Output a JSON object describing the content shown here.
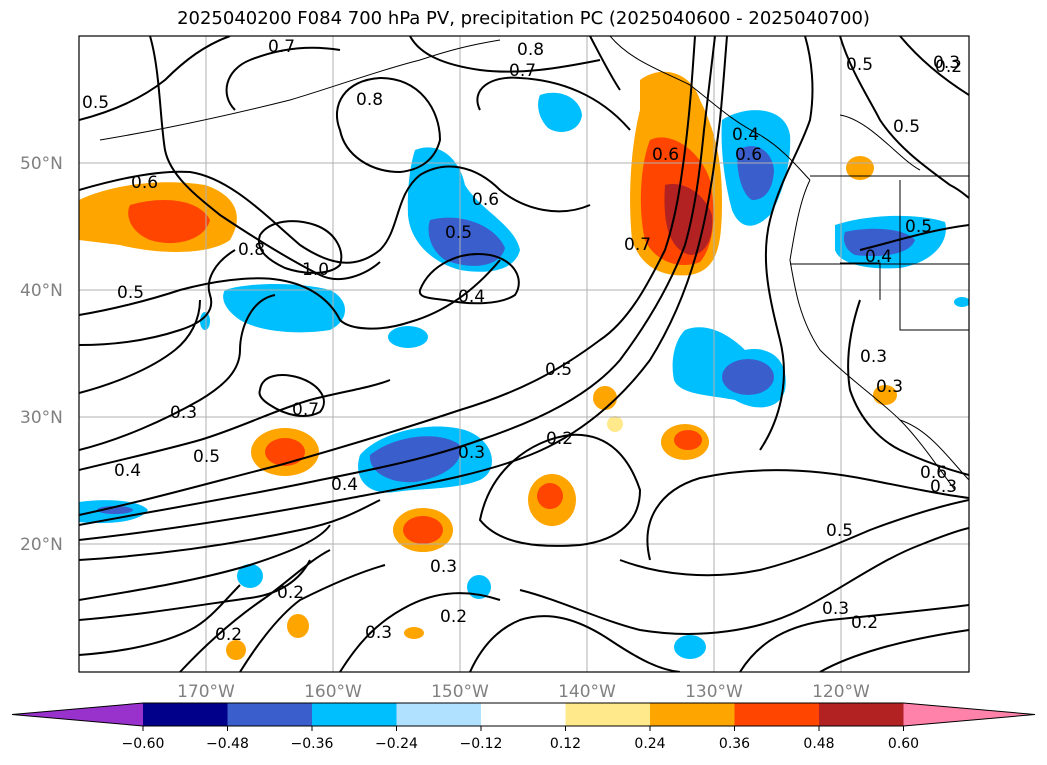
{
  "title": "2025040200 F084 700 hPa PV, precipitation PC (2025040600 - 2025040700)",
  "lat_labels": [
    "50°N",
    "40°N",
    "30°N",
    "20°N"
  ],
  "lon_labels": [
    "170°W",
    "160°W",
    "150°W",
    "140°W",
    "130°W",
    "120°W"
  ],
  "contour_labels": [
    "0.7",
    "0.8",
    "0.7",
    "0.5",
    "0.5",
    "0.3",
    "0.8",
    "0.6",
    "0.5",
    "0.6",
    "0.4",
    "0.8",
    "1.0",
    "0.5",
    "0.5",
    "0.4",
    "0.6",
    "0.7",
    "0.6",
    "0.5",
    "0.4",
    "0.5",
    "0.3",
    "0.7",
    "0.5",
    "0.4",
    "0.3",
    "0.4",
    "0.2",
    "0.3",
    "0.3",
    "0.2",
    "0.3",
    "0.2",
    "0.2",
    "0.3",
    "0.3",
    "0.2",
    "0.5",
    "0.3",
    "0.2",
    "0.6"
  ],
  "colorbar": {
    "ticks": [
      "−0.60",
      "−0.48",
      "−0.36",
      "−0.24",
      "−0.12",
      "0.12",
      "0.24",
      "0.36",
      "0.48",
      "0.60"
    ],
    "colors": [
      "#9932cc",
      "#00008b",
      "#3a5fcd",
      "#00bfff",
      "#b0e2ff",
      "#ffffff",
      "#ffe98a",
      "#ffa500",
      "#ff4500",
      "#b22222",
      "#ff82ab"
    ]
  }
}
